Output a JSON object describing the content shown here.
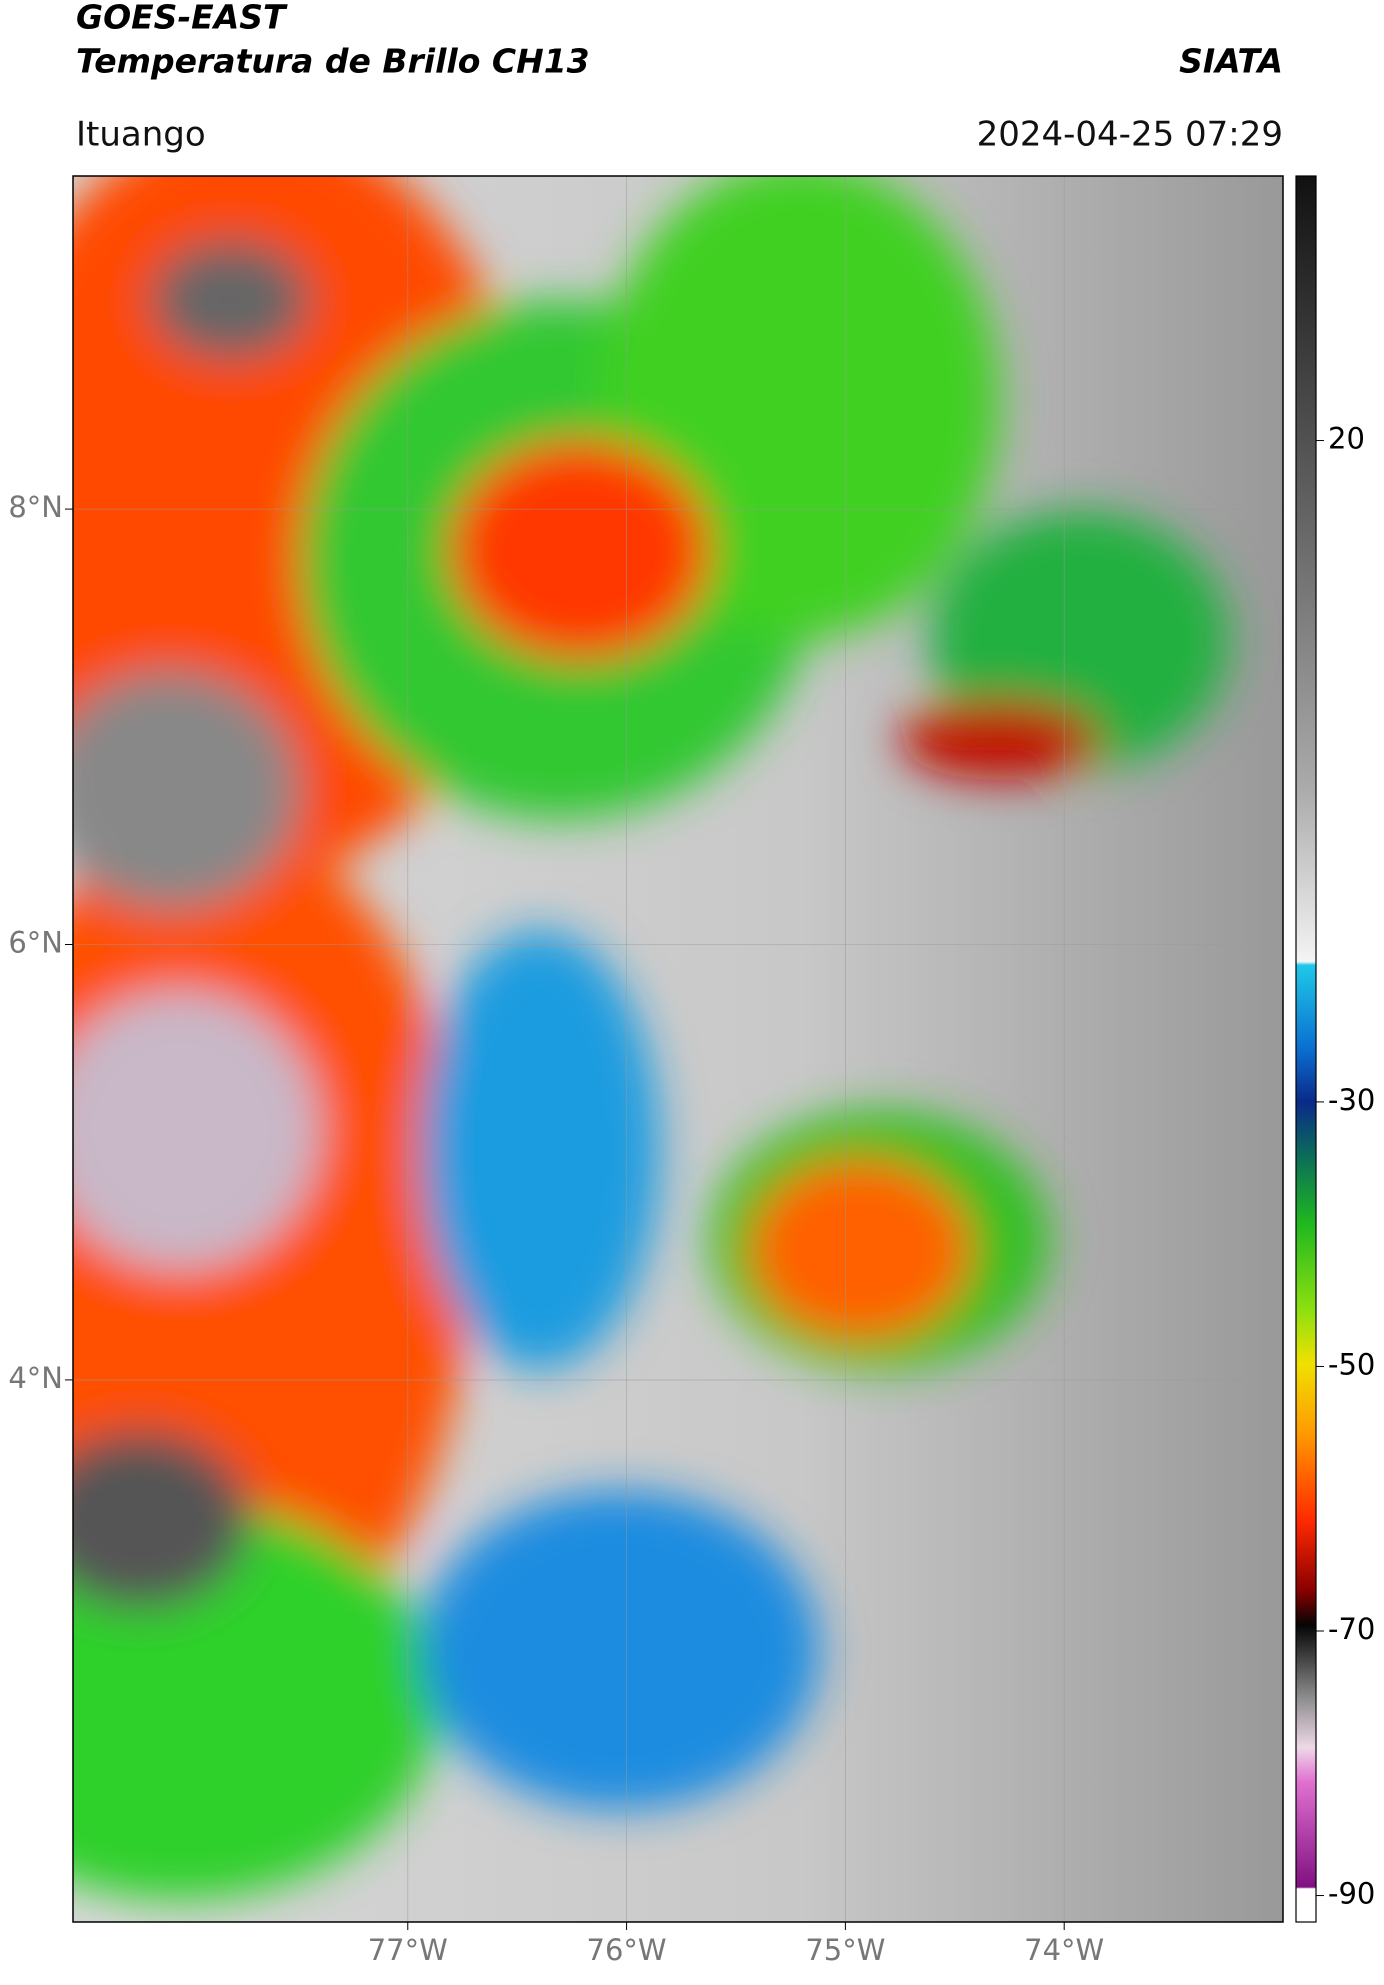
{
  "map": {
    "header": {
      "title": "GOES-EAST",
      "subtitle": "Temperatura de Brillo CH13",
      "source": "SIATA",
      "region": "Ituango",
      "datetime": "2024-04-25 07:29"
    },
    "xlim": [
      -78.53,
      -73.0
    ],
    "ylim": [
      1.51,
      9.53
    ],
    "xticks": [
      {
        "value": -77,
        "label": "77°W"
      },
      {
        "value": -76,
        "label": "76°W"
      },
      {
        "value": -75,
        "label": "75°W"
      },
      {
        "value": -74,
        "label": "74°W"
      }
    ],
    "yticks": [
      {
        "value": 8,
        "label": "8°N"
      },
      {
        "value": 6,
        "label": "6°N"
      },
      {
        "value": 4,
        "label": "4°N"
      }
    ],
    "grid": true,
    "colorbar": {
      "lim": [
        -92,
        40
      ],
      "ticks": [
        20,
        -30,
        -50,
        -70,
        -90
      ]
    }
  }
}
